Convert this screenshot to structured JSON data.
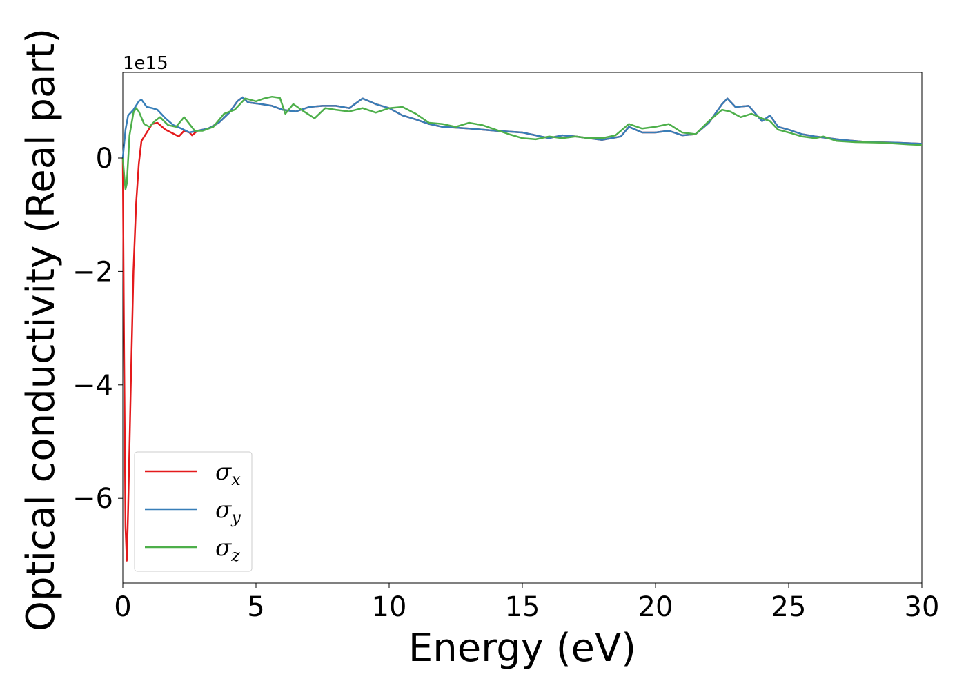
{
  "chart_data": {
    "type": "line",
    "xlabel": "Energy (eV)",
    "ylabel": "Optical conductivity (Real part)",
    "y_offset_label": "1e15",
    "xlim": [
      0,
      30
    ],
    "ylim": [
      -7.5,
      1.5
    ],
    "x_ticks": [
      0,
      5,
      10,
      15,
      20,
      25,
      30
    ],
    "x_tick_labels": [
      "0",
      "5",
      "10",
      "15",
      "20",
      "25",
      "30"
    ],
    "y_ticks": [
      0,
      -2,
      -4,
      -6
    ],
    "y_tick_labels": [
      "0",
      "−2",
      "−4",
      "−6"
    ],
    "grid": false,
    "legend_position": "lower-left",
    "series": [
      {
        "name": "σx",
        "symbol": "σ",
        "subscript": "x",
        "color": "#e41a1c",
        "points": [
          [
            0,
            0
          ],
          [
            0.05,
            -3.5
          ],
          [
            0.1,
            -6.5
          ],
          [
            0.15,
            -7.1
          ],
          [
            0.2,
            -6.2
          ],
          [
            0.3,
            -4.0
          ],
          [
            0.4,
            -2.0
          ],
          [
            0.5,
            -0.8
          ],
          [
            0.6,
            -0.1
          ],
          [
            0.7,
            0.3
          ],
          [
            0.9,
            0.45
          ],
          [
            1.1,
            0.6
          ],
          [
            1.3,
            0.62
          ],
          [
            1.6,
            0.5
          ],
          [
            1.9,
            0.43
          ],
          [
            2.1,
            0.38
          ],
          [
            2.3,
            0.48
          ],
          [
            2.5,
            0.45
          ],
          [
            2.6,
            0.4
          ],
          [
            2.8,
            0.48
          ],
          [
            3.2,
            0.52
          ],
          [
            3.6,
            0.62
          ],
          [
            4.0,
            0.8
          ],
          [
            4.3,
            1.0
          ],
          [
            4.5,
            1.07
          ],
          [
            4.7,
            0.98
          ],
          [
            5.2,
            0.95
          ],
          [
            5.6,
            0.92
          ],
          [
            6.0,
            0.85
          ],
          [
            6.5,
            0.82
          ],
          [
            7.0,
            0.9
          ],
          [
            7.5,
            0.92
          ],
          [
            8.0,
            0.92
          ],
          [
            8.5,
            0.88
          ],
          [
            9.0,
            1.05
          ],
          [
            9.5,
            0.95
          ],
          [
            10.0,
            0.88
          ],
          [
            10.5,
            0.75
          ],
          [
            11.0,
            0.68
          ],
          [
            11.5,
            0.6
          ],
          [
            12.0,
            0.55
          ],
          [
            13.0,
            0.52
          ],
          [
            14.0,
            0.48
          ],
          [
            15.0,
            0.45
          ],
          [
            15.5,
            0.4
          ],
          [
            16.0,
            0.35
          ],
          [
            16.5,
            0.4
          ],
          [
            17.0,
            0.38
          ],
          [
            17.5,
            0.35
          ],
          [
            18.0,
            0.32
          ],
          [
            18.7,
            0.38
          ],
          [
            19.0,
            0.55
          ],
          [
            19.5,
            0.45
          ],
          [
            20.0,
            0.45
          ],
          [
            20.5,
            0.48
          ],
          [
            21.0,
            0.4
          ],
          [
            21.5,
            0.42
          ],
          [
            22.0,
            0.62
          ],
          [
            22.5,
            0.95
          ],
          [
            22.7,
            1.05
          ],
          [
            23.0,
            0.9
          ],
          [
            23.5,
            0.92
          ],
          [
            24.0,
            0.65
          ],
          [
            24.3,
            0.75
          ],
          [
            24.6,
            0.55
          ],
          [
            25.0,
            0.5
          ],
          [
            25.5,
            0.42
          ],
          [
            26.0,
            0.38
          ],
          [
            27.0,
            0.32
          ],
          [
            28.0,
            0.28
          ],
          [
            29.0,
            0.27
          ],
          [
            30.0,
            0.25
          ]
        ]
      },
      {
        "name": "σy",
        "symbol": "σ",
        "subscript": "y",
        "color": "#377eb8",
        "points": [
          [
            0,
            0
          ],
          [
            0.1,
            0.5
          ],
          [
            0.2,
            0.75
          ],
          [
            0.4,
            0.85
          ],
          [
            0.6,
            1.0
          ],
          [
            0.7,
            1.03
          ],
          [
            0.9,
            0.9
          ],
          [
            1.1,
            0.88
          ],
          [
            1.3,
            0.85
          ],
          [
            1.6,
            0.7
          ],
          [
            1.9,
            0.58
          ],
          [
            2.2,
            0.52
          ],
          [
            2.5,
            0.45
          ],
          [
            2.8,
            0.48
          ],
          [
            3.2,
            0.52
          ],
          [
            3.6,
            0.62
          ],
          [
            4.0,
            0.8
          ],
          [
            4.3,
            1.0
          ],
          [
            4.5,
            1.07
          ],
          [
            4.7,
            0.98
          ],
          [
            5.2,
            0.95
          ],
          [
            5.6,
            0.92
          ],
          [
            6.0,
            0.85
          ],
          [
            6.5,
            0.82
          ],
          [
            7.0,
            0.9
          ],
          [
            7.5,
            0.92
          ],
          [
            8.0,
            0.92
          ],
          [
            8.5,
            0.88
          ],
          [
            9.0,
            1.05
          ],
          [
            9.5,
            0.95
          ],
          [
            10.0,
            0.88
          ],
          [
            10.5,
            0.75
          ],
          [
            11.0,
            0.68
          ],
          [
            11.5,
            0.6
          ],
          [
            12.0,
            0.55
          ],
          [
            13.0,
            0.52
          ],
          [
            14.0,
            0.48
          ],
          [
            15.0,
            0.45
          ],
          [
            15.5,
            0.4
          ],
          [
            16.0,
            0.35
          ],
          [
            16.5,
            0.4
          ],
          [
            17.0,
            0.38
          ],
          [
            17.5,
            0.35
          ],
          [
            18.0,
            0.32
          ],
          [
            18.7,
            0.38
          ],
          [
            19.0,
            0.55
          ],
          [
            19.5,
            0.45
          ],
          [
            20.0,
            0.45
          ],
          [
            20.5,
            0.48
          ],
          [
            21.0,
            0.4
          ],
          [
            21.5,
            0.42
          ],
          [
            22.0,
            0.62
          ],
          [
            22.5,
            0.95
          ],
          [
            22.7,
            1.05
          ],
          [
            23.0,
            0.9
          ],
          [
            23.5,
            0.92
          ],
          [
            24.0,
            0.65
          ],
          [
            24.3,
            0.75
          ],
          [
            24.6,
            0.55
          ],
          [
            25.0,
            0.5
          ],
          [
            25.5,
            0.42
          ],
          [
            26.0,
            0.38
          ],
          [
            27.0,
            0.32
          ],
          [
            28.0,
            0.28
          ],
          [
            29.0,
            0.27
          ],
          [
            30.0,
            0.25
          ]
        ]
      },
      {
        "name": "σz",
        "symbol": "σ",
        "subscript": "z",
        "color": "#4daf4a",
        "points": [
          [
            0,
            0
          ],
          [
            0.05,
            -0.3
          ],
          [
            0.1,
            -0.55
          ],
          [
            0.15,
            -0.45
          ],
          [
            0.25,
            0.4
          ],
          [
            0.4,
            0.8
          ],
          [
            0.5,
            0.88
          ],
          [
            0.6,
            0.82
          ],
          [
            0.8,
            0.6
          ],
          [
            1.0,
            0.55
          ],
          [
            1.2,
            0.65
          ],
          [
            1.4,
            0.72
          ],
          [
            1.7,
            0.58
          ],
          [
            2.0,
            0.55
          ],
          [
            2.3,
            0.72
          ],
          [
            2.5,
            0.6
          ],
          [
            2.7,
            0.48
          ],
          [
            3.0,
            0.48
          ],
          [
            3.4,
            0.55
          ],
          [
            3.8,
            0.78
          ],
          [
            4.2,
            0.85
          ],
          [
            4.6,
            1.05
          ],
          [
            5.0,
            1.0
          ],
          [
            5.3,
            1.05
          ],
          [
            5.6,
            1.08
          ],
          [
            5.9,
            1.06
          ],
          [
            6.1,
            0.78
          ],
          [
            6.4,
            0.95
          ],
          [
            6.8,
            0.82
          ],
          [
            7.2,
            0.7
          ],
          [
            7.6,
            0.88
          ],
          [
            8.0,
            0.85
          ],
          [
            8.5,
            0.82
          ],
          [
            9.0,
            0.88
          ],
          [
            9.5,
            0.8
          ],
          [
            10.0,
            0.88
          ],
          [
            10.5,
            0.9
          ],
          [
            11.0,
            0.78
          ],
          [
            11.5,
            0.62
          ],
          [
            12.0,
            0.6
          ],
          [
            12.5,
            0.55
          ],
          [
            13.0,
            0.62
          ],
          [
            13.5,
            0.58
          ],
          [
            14.0,
            0.5
          ],
          [
            14.5,
            0.42
          ],
          [
            15.0,
            0.35
          ],
          [
            15.5,
            0.33
          ],
          [
            16.0,
            0.38
          ],
          [
            16.5,
            0.35
          ],
          [
            17.0,
            0.38
          ],
          [
            17.5,
            0.35
          ],
          [
            18.0,
            0.35
          ],
          [
            18.5,
            0.4
          ],
          [
            19.0,
            0.6
          ],
          [
            19.5,
            0.52
          ],
          [
            20.0,
            0.55
          ],
          [
            20.5,
            0.6
          ],
          [
            21.0,
            0.45
          ],
          [
            21.5,
            0.42
          ],
          [
            22.0,
            0.65
          ],
          [
            22.5,
            0.85
          ],
          [
            22.8,
            0.82
          ],
          [
            23.2,
            0.72
          ],
          [
            23.6,
            0.78
          ],
          [
            24.0,
            0.7
          ],
          [
            24.3,
            0.65
          ],
          [
            24.6,
            0.5
          ],
          [
            25.0,
            0.45
          ],
          [
            25.5,
            0.38
          ],
          [
            26.0,
            0.35
          ],
          [
            26.3,
            0.38
          ],
          [
            26.8,
            0.3
          ],
          [
            27.5,
            0.28
          ],
          [
            28.5,
            0.27
          ],
          [
            29.5,
            0.24
          ],
          [
            30.0,
            0.23
          ]
        ]
      }
    ]
  }
}
